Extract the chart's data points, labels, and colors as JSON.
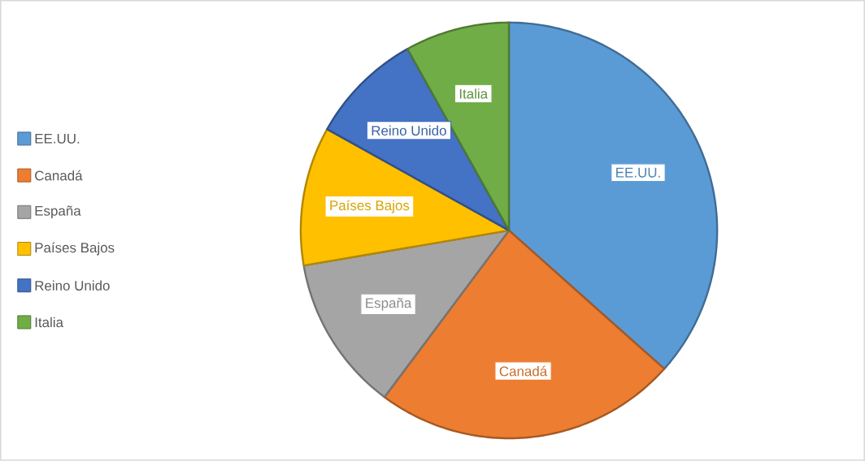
{
  "chart_data": {
    "type": "pie",
    "categories": [
      "EE.UU.",
      "Canadá",
      "España",
      "Países Bajos",
      "Reino Unido",
      "Italia"
    ],
    "values": [
      36.6,
      23.6,
      12.1,
      10.8,
      8.8,
      8.1
    ],
    "colors": [
      "#5b9bd5",
      "#ed7d31",
      "#a5a5a5",
      "#ffc000",
      "#4472c4",
      "#70ad47"
    ],
    "legend": "left"
  }
}
